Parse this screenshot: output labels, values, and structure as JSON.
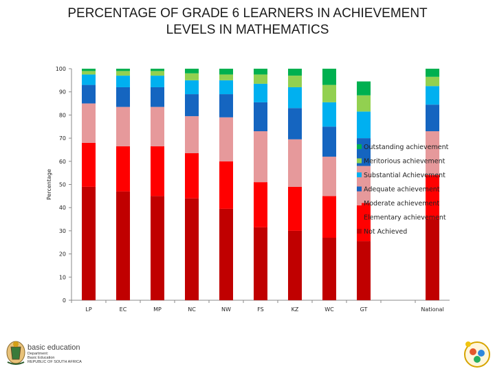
{
  "title_line1": "PERCENTAGE OF GRADE 6 LEARNERS IN ACHIEVEMENT",
  "title_line2": "LEVELS IN MATHEMATICS",
  "footer": {
    "org": "basic education",
    "dept_line1": "Department:",
    "dept_line2": "Basic Education",
    "dept_line3": "REPUBLIC OF SOUTH AFRICA"
  },
  "chart_data": {
    "type": "bar",
    "stacked": true,
    "title": "PERCENTAGE OF GRADE 6 LEARNERS IN ACHIEVEMENT LEVELS IN MATHEMATICS",
    "xlabel": "",
    "ylabel": "Percentage",
    "ylim": [
      0,
      100
    ],
    "yticks": [
      0,
      10,
      20,
      30,
      40,
      50,
      60,
      70,
      80,
      90,
      100
    ],
    "grid": false,
    "legend_position": "right",
    "categories": [
      "LP",
      "EC",
      "MP",
      "NC",
      "NW",
      "FS",
      "KZ",
      "WC",
      "GT",
      "",
      "National"
    ],
    "series": [
      {
        "name": "Not Achieved",
        "color": "#c00000",
        "values": [
          49,
          47,
          45,
          44,
          39.5,
          31.5,
          30,
          27,
          25.5,
          null,
          35
        ]
      },
      {
        "name": "Elementary achievement",
        "color": "#ff0000",
        "values": [
          19,
          19.5,
          21.5,
          19.5,
          20.5,
          19.5,
          19,
          18,
          16.5,
          null,
          19
        ]
      },
      {
        "name": "Moderate achievement",
        "color": "#e6999b",
        "values": [
          17,
          17,
          17,
          16,
          19,
          22,
          20.5,
          17,
          16,
          null,
          19
        ]
      },
      {
        "name": "Adequate achievement",
        "color": "#1565c0",
        "values": [
          8,
          8.5,
          8.5,
          9.5,
          10,
          12.5,
          13.5,
          13,
          12,
          null,
          11.5
        ]
      },
      {
        "name": "Substantial Achievement",
        "color": "#00b0f0",
        "values": [
          4.5,
          5,
          5,
          6,
          6,
          8,
          9,
          10.5,
          11.5,
          null,
          8
        ]
      },
      {
        "name": "Meritorious achievement",
        "color": "#92d050",
        "values": [
          1.5,
          2,
          2,
          3,
          2.5,
          4,
          5,
          7.5,
          7,
          null,
          4
        ]
      },
      {
        "name": "Outstanding achievement",
        "color": "#00b050",
        "values": [
          1,
          1,
          1,
          2,
          2.5,
          2.5,
          3,
          7,
          6,
          null,
          3.5
        ]
      }
    ],
    "legend_order": [
      "Outstanding achievement",
      "Meritorious achievement",
      "Substantial Achievement",
      "Adequate achievement",
      "Moderate achievement",
      "Elementary achievement",
      "Not Achieved"
    ]
  }
}
